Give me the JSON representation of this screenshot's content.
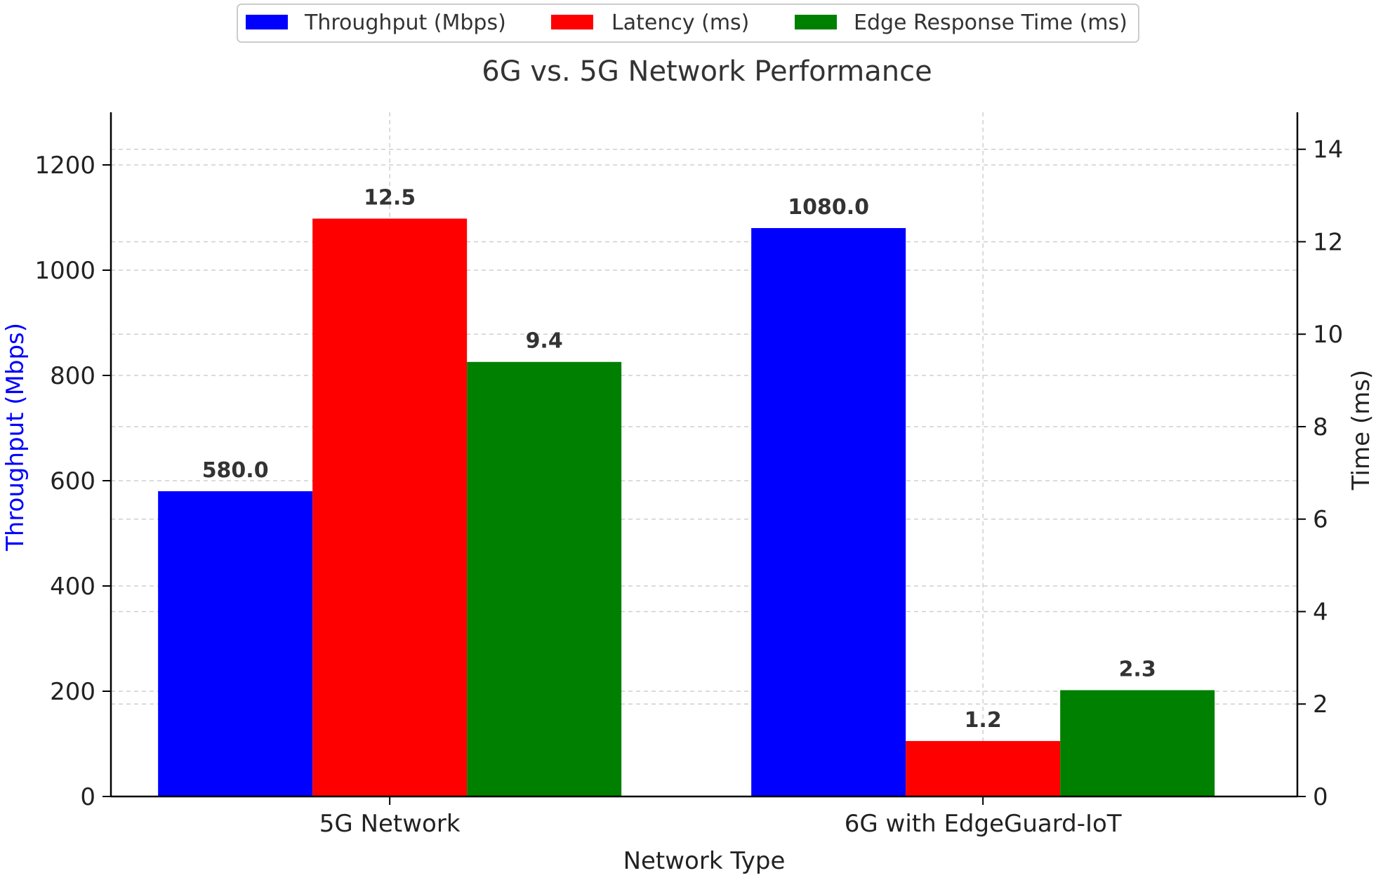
{
  "chart_data": {
    "type": "bar",
    "title": "6G vs. 5G Network Performance",
    "xlabel": "Network Type",
    "ylabel_left": "Throughput (Mbps)",
    "ylabel_right": "Time (ms)",
    "categories": [
      "5G Network",
      "6G with EdgeGuard-IoT"
    ],
    "y_left": {
      "min": 0,
      "max": 1300,
      "ticks": [
        0,
        200,
        400,
        600,
        800,
        1000,
        1200
      ]
    },
    "y_right": {
      "min": 0,
      "max": 14.8,
      "ticks": [
        0,
        2,
        4,
        6,
        8,
        10,
        12,
        14
      ]
    },
    "series": [
      {
        "name": "Throughput (Mbps)",
        "axis": "left",
        "color": "#0000ff",
        "values": [
          580.0,
          1080.0
        ],
        "labels": [
          "580.0",
          "1080.0"
        ]
      },
      {
        "name": "Latency (ms)",
        "axis": "right",
        "color": "#ff0000",
        "values": [
          12.5,
          1.2
        ],
        "labels": [
          "12.5",
          "1.2"
        ]
      },
      {
        "name": "Edge Response Time (ms)",
        "axis": "right",
        "color": "#008000",
        "values": [
          9.4,
          2.3
        ],
        "labels": [
          "9.4",
          "2.3"
        ]
      }
    ],
    "left_label_color": "#0000ff",
    "grid": true,
    "legend_position": "top-center"
  }
}
